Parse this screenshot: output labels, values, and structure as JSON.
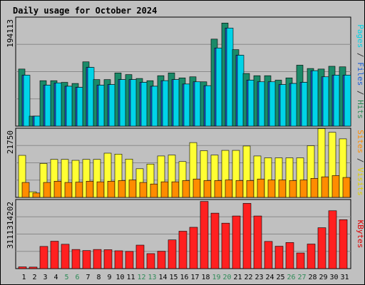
{
  "chart_data": {
    "type": "bar",
    "title": "Daily usage for October 2024",
    "days": [
      "1",
      "2",
      "3",
      "4",
      "5",
      "6",
      "7",
      "8",
      "9",
      "10",
      "11",
      "12",
      "13",
      "14",
      "15",
      "16",
      "17",
      "18",
      "19",
      "20",
      "21",
      "22",
      "23",
      "24",
      "25",
      "26",
      "27",
      "28",
      "29",
      "30",
      "31"
    ],
    "weekend_days": [
      "5",
      "6",
      "12",
      "13",
      "19",
      "20",
      "26",
      "27"
    ],
    "colors": {
      "day_label": "#000000",
      "weekend_label": "#2e8b57",
      "title": "#0000c0",
      "background": "#c0c0c0",
      "grid": "#8a8a8a"
    },
    "panels": [
      {
        "id": "hits_files_pages",
        "max_label": "194113",
        "ymax": 194113,
        "side_label": [
          {
            "text": "Pages",
            "color": "#00d4e8"
          },
          {
            "text": " / ",
            "color": "#333333"
          },
          {
            "text": "Files",
            "color": "#1f5fd6"
          },
          {
            "text": " / ",
            "color": "#333333"
          },
          {
            "text": "Hits",
            "color": "#2e8b57"
          }
        ],
        "series": [
          {
            "name": "Hits",
            "color": "#1a8a68",
            "values": [
              103000,
              18000,
              82000,
              82000,
              79000,
              77000,
              116000,
              84000,
              84000,
              96000,
              93000,
              86000,
              82000,
              91000,
              96000,
              87000,
              89000,
              80000,
              157000,
              186000,
              138000,
              95000,
              91000,
              91000,
              83000,
              87000,
              110000,
              104000,
              103000,
              108000,
              107000
            ]
          },
          {
            "name": "Files",
            "color": "#1f5fd6",
            "values": [
              92000,
              18000,
              74000,
              78000,
              72000,
              70000,
              106000,
              74000,
              75000,
              84000,
              84000,
              79000,
              72000,
              82000,
              84000,
              76000,
              80000,
              73000,
              141000,
              177000,
              128000,
              83000,
              80000,
              80000,
              75000,
              77000,
              79000,
              100000,
              89000,
              92000,
              92000
            ]
          },
          {
            "name": "Pages",
            "color": "#00d4e8",
            "values": [
              92000,
              18000,
              74000,
              78000,
              72000,
              70000,
              106000,
              74000,
              75000,
              84000,
              84000,
              79000,
              72000,
              82000,
              84000,
              76000,
              80000,
              73000,
              141000,
              177000,
              128000,
              83000,
              80000,
              80000,
              75000,
              77000,
              79000,
              100000,
              89000,
              92000,
              92000
            ]
          }
        ]
      },
      {
        "id": "visits_sites",
        "max_label": "21750",
        "ymax": 21750,
        "side_label": [
          {
            "text": "Sites",
            "color": "#ff8c00"
          },
          {
            "text": " / ",
            "color": "#333333"
          },
          {
            "text": "Visits",
            "color": "#e0d000"
          }
        ],
        "series": [
          {
            "name": "Visits",
            "color": "#ffff33",
            "values": [
              13500,
              1800,
              10900,
              12200,
              12200,
              11900,
              12200,
              12200,
              14200,
              13900,
              12300,
              9200,
              10700,
              13300,
              13600,
              11500,
              17600,
              15000,
              13600,
              15100,
              15100,
              16500,
              13300,
              12700,
              12700,
              12700,
              12700,
              16600,
              22100,
              20900,
              18800
            ]
          },
          {
            "name": "Sites",
            "color": "#ff8c00",
            "values": [
              4800,
              1400,
              4800,
              5200,
              4800,
              4900,
              5200,
              5000,
              5200,
              5400,
              5600,
              4800,
              4300,
              5000,
              5000,
              5400,
              5900,
              5400,
              5400,
              5600,
              5400,
              5400,
              5900,
              5600,
              5600,
              5400,
              5600,
              6100,
              6600,
              7000,
              6400
            ]
          }
        ]
      },
      {
        "id": "kbytes",
        "max_label": "3111314202",
        "ymax": 3111314202,
        "side_label": [
          {
            "text": "KBytes",
            "color": "#e00000"
          }
        ],
        "series": [
          {
            "name": "KBytes",
            "color": "#ff2020",
            "values": [
              80000000,
              70000000,
              1020000000,
              1260000000,
              1120000000,
              880000000,
              830000000,
              880000000,
              870000000,
              820000000,
              790000000,
              1080000000,
              690000000,
              800000000,
              1320000000,
              1720000000,
              1900000000,
              3090000000,
              2550000000,
              2090000000,
              2420000000,
              3000000000,
              2420000000,
              1250000000,
              1030000000,
              1200000000,
              720000000,
              1130000000,
              1880000000,
              2660000000,
              2250000000
            ]
          }
        ]
      }
    ]
  }
}
